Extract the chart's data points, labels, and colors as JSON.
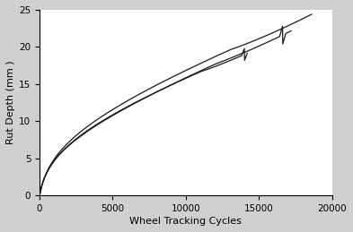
{
  "title": "",
  "xlabel": "Wheel Tracking Cycles",
  "ylabel": "Rut Depth (mm )",
  "xlim": [
    0,
    20000
  ],
  "ylim": [
    0,
    25
  ],
  "xticks": [
    0,
    5000,
    10000,
    15000,
    20000
  ],
  "yticks": [
    0,
    5,
    10,
    15,
    20,
    25
  ],
  "background_color": "#ffffff",
  "line_color": "#1a1a1a",
  "figsize": [
    3.93,
    2.59
  ],
  "dpi": 100
}
